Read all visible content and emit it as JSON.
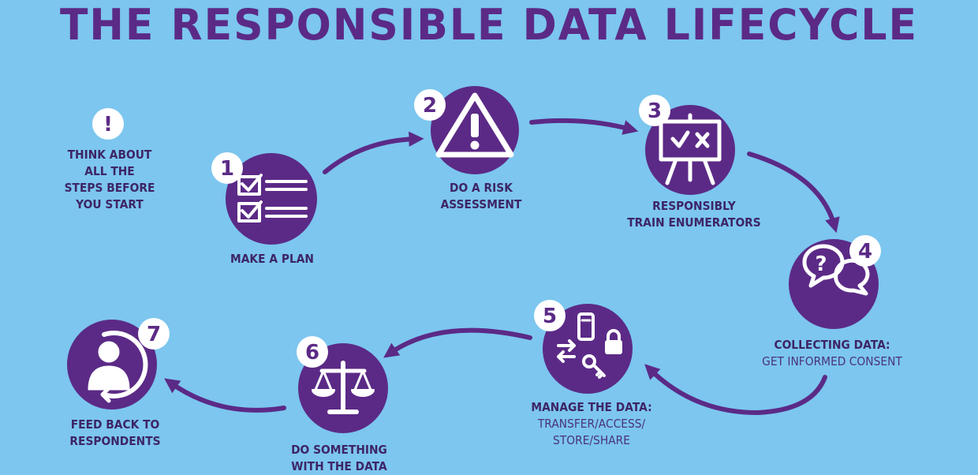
{
  "title": "THE RESPONSIBLE DATA LIFECYCLE",
  "intro": {
    "mark": "!",
    "lines": [
      "THINK ABOUT",
      "ALL THE",
      "STEPS BEFORE",
      "YOU START"
    ]
  },
  "steps": [
    {
      "num": "1",
      "label": "MAKE A PLAN",
      "sub": "",
      "icon": "checklist-icon"
    },
    {
      "num": "2",
      "label": "DO A RISK\nASSESSMENT",
      "sub": "",
      "icon": "warning-triangle-icon"
    },
    {
      "num": "3",
      "label": "RESPONSIBLY\nTRAIN ENUMERATORS",
      "sub": "",
      "icon": "presentation-board-icon"
    },
    {
      "num": "4",
      "label": "COLLECTING DATA:",
      "sub": "GET INFORMED CONSENT",
      "icon": "speech-bubbles-icon"
    },
    {
      "num": "5",
      "label": "MANAGE THE DATA:",
      "sub": "TRANSFER/ACCESS/\nSTORE/SHARE",
      "icon": "data-management-icon"
    },
    {
      "num": "6",
      "label": "DO SOMETHING\nWITH THE DATA",
      "sub": "",
      "icon": "scales-icon"
    },
    {
      "num": "7",
      "label": "FEED BACK TO\nRESPONDENTS",
      "sub": "",
      "icon": "person-feedback-icon"
    }
  ],
  "colors": {
    "background": "#7cc6ef",
    "circle": "#5b2a86",
    "text": "#3d2566",
    "white": "#ffffff"
  }
}
